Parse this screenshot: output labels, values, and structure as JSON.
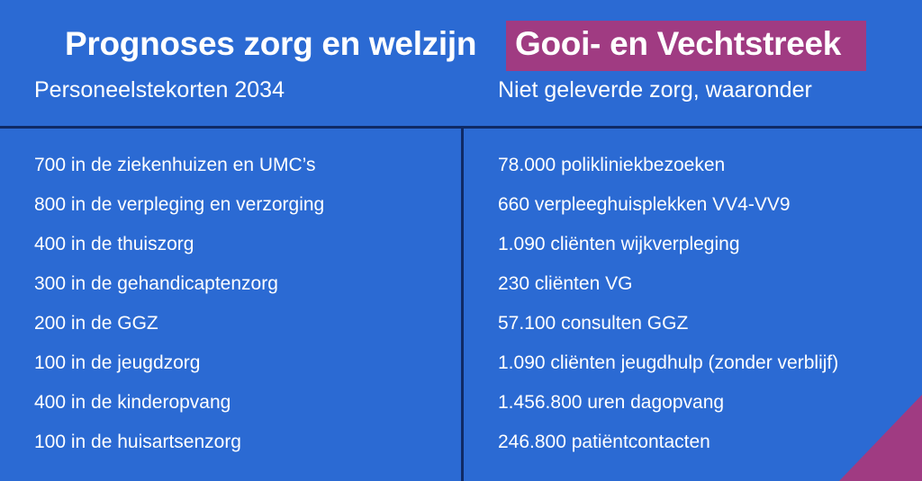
{
  "title": {
    "plain": "Prognoses zorg en welzijn",
    "highlight": "Gooi- en Vechtstreek"
  },
  "colors": {
    "background": "#2b6ad3",
    "highlight": "#a03b82",
    "divider": "#0f2a66",
    "text": "#ffffff"
  },
  "left_column": {
    "heading": "Personeelstekorten 2034",
    "items": [
      "700 in de ziekenhuizen en UMC’s",
      "800 in de verpleging en verzorging",
      "400 in de thuiszorg",
      "300 in de gehandicaptenzorg",
      "200 in de GGZ",
      "100 in de jeugdzorg",
      "400 in de kinderopvang",
      "100 in de huisartsenzorg"
    ]
  },
  "right_column": {
    "heading": "Niet geleverde zorg, waaronder",
    "items": [
      "78.000 polikliniekbezoeken",
      "660 verpleeghuisplekken VV4-VV9",
      "1.090 cliënten wijkverpleging",
      "230 cliënten VG",
      "57.100 consulten GGZ",
      "1.090 cliënten jeugdhulp (zonder verblijf)",
      "1.456.800 uren dagopvang",
      "246.800 patiëntcontacten"
    ]
  }
}
